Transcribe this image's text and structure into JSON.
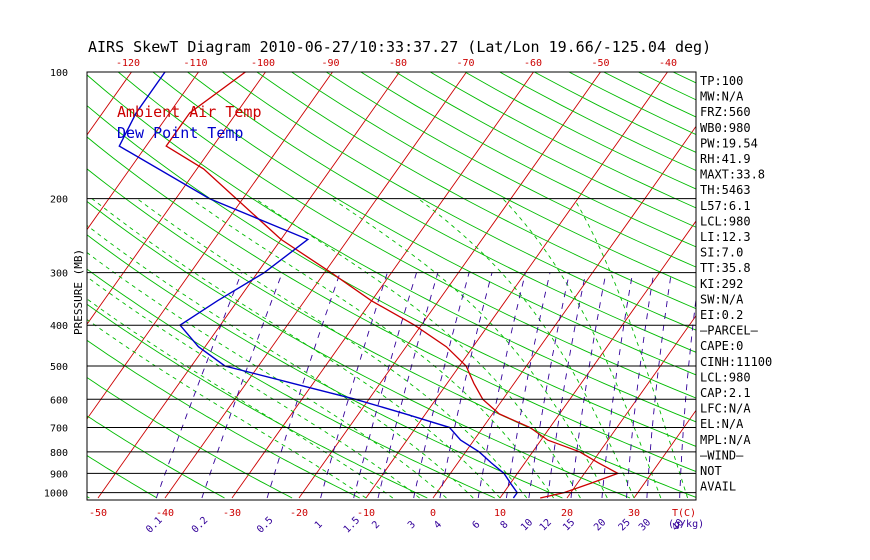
{
  "title": "AIRS SkewT Diagram 2010-06-27/10:33:37.27 (Lat/Lon 19.66/-125.04 deg)",
  "colors": {
    "temp": "#cc0000",
    "dew": "#0000cc",
    "isotherm": "#cc0000",
    "dry_adiabat": "#00bb00",
    "moist_adiabat": "#00bb00",
    "mixing_ratio": "#330099",
    "isobar": "#000000"
  },
  "legend": {
    "temp_label": "Ambient Air Temp",
    "dew_label": "Dew Point Temp",
    "placement": "top-left"
  },
  "y_axis_label": "PRESSURE (MB)",
  "pressure_ticks": [
    "100",
    "200",
    "300",
    "400",
    "500",
    "600",
    "700",
    "800",
    "900",
    "1000"
  ],
  "top_temp_ticks": [
    "-120",
    "-110",
    "-100",
    "-90",
    "-80",
    "-70",
    "-60",
    "-50",
    "-40"
  ],
  "bottom_temp_ticks": [
    "-50",
    "-40",
    "-30",
    "-20",
    "-10",
    "0",
    "10",
    "20",
    "30"
  ],
  "bottom_temp_unit": "T(C)",
  "mixing_ratio_ticks": [
    "0.1",
    "0.2",
    "0.5",
    "1",
    "1.5",
    "2",
    "3",
    "4",
    "6",
    "8",
    "10",
    "12",
    "15",
    "20",
    "25",
    "30",
    "40"
  ],
  "mixing_ratio_unit": "(g/kg)",
  "indices": [
    "TP:100",
    "MW:N/A",
    "FRZ:560",
    "WB0:980",
    "PW:19.54",
    "RH:41.9",
    "MAXT:33.8",
    "TH:5463",
    "L57:6.1",
    "LCL:980",
    "LI:12.3",
    "SI:7.0",
    "TT:35.8",
    "KI:292",
    "SW:N/A",
    "EI:0.2",
    "—PARCEL—",
    "CAPE:0",
    "CINH:11100",
    "LCL:980",
    "CAP:2.1",
    "LFC:N/A",
    "EL:N/A",
    "MPL:N/A",
    "—WIND—",
    "NOT",
    "AVAIL"
  ],
  "chart_data": {
    "type": "line",
    "title": "AIRS SkewT Diagram 2010-06-27/10:33:37.27 (Lat/Lon 19.66/-125.04 deg)",
    "ylabel": "PRESSURE (MB)",
    "xlabel": "T(C)",
    "y_scale": "log",
    "ylim": [
      1030,
      100
    ],
    "xlim_bottom": [
      -50,
      40
    ],
    "grid": true,
    "legend_placement": "top-left",
    "series": [
      {
        "name": "Ambient Air Temp",
        "color": "#cc0000",
        "points": [
          [
            1030,
            16
          ],
          [
            1000,
            19
          ],
          [
            950,
            22
          ],
          [
            900,
            25
          ],
          [
            850,
            21
          ],
          [
            800,
            17
          ],
          [
            750,
            11
          ],
          [
            700,
            7
          ],
          [
            650,
            1
          ],
          [
            600,
            -3
          ],
          [
            550,
            -6
          ],
          [
            500,
            -9
          ],
          [
            450,
            -14
          ],
          [
            400,
            -21
          ],
          [
            350,
            -30
          ],
          [
            300,
            -39
          ],
          [
            250,
            -50
          ],
          [
            200,
            -61
          ],
          [
            170,
            -69
          ],
          [
            150,
            -77
          ],
          [
            125,
            -77
          ],
          [
            100,
            -73
          ]
        ]
      },
      {
        "name": "Dew Point Temp",
        "color": "#0000cc",
        "points": [
          [
            1030,
            12
          ],
          [
            1000,
            12
          ],
          [
            950,
            10
          ],
          [
            900,
            8
          ],
          [
            850,
            5
          ],
          [
            800,
            2
          ],
          [
            750,
            -2
          ],
          [
            700,
            -5
          ],
          [
            650,
            -13
          ],
          [
            600,
            -22
          ],
          [
            550,
            -33
          ],
          [
            500,
            -45
          ],
          [
            450,
            -51
          ],
          [
            400,
            -56
          ],
          [
            350,
            -53
          ],
          [
            300,
            -49
          ],
          [
            250,
            -46
          ],
          [
            200,
            -65
          ],
          [
            150,
            -84
          ],
          [
            125,
            -85
          ],
          [
            100,
            -85
          ]
        ]
      }
    ]
  }
}
